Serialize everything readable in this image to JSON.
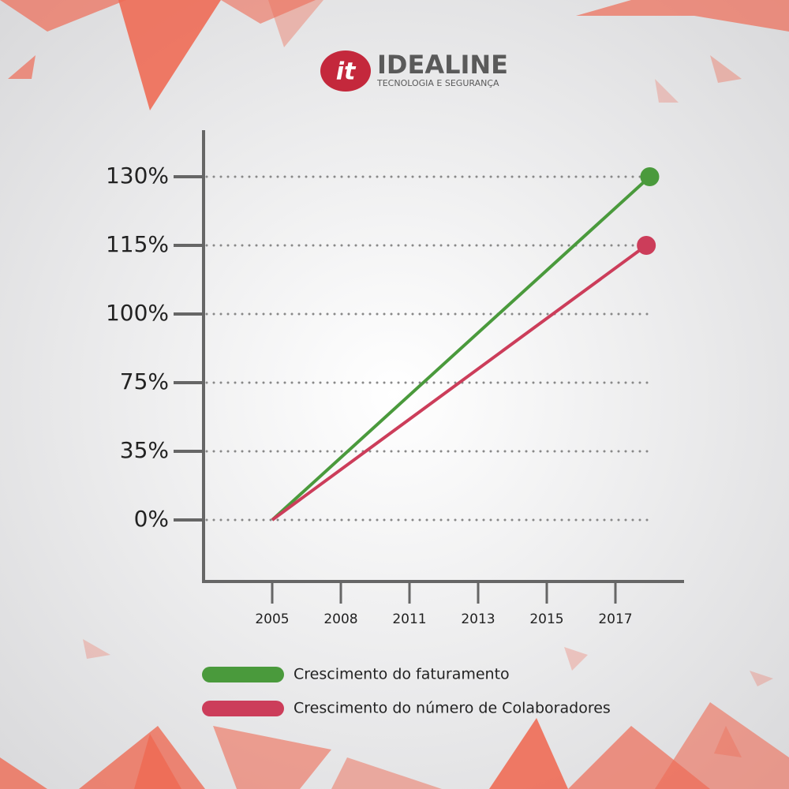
{
  "header": {
    "logo_mark": "it",
    "brand": "IDEALINE",
    "tagline": "TECNOLOGIA E SEGURANÇA"
  },
  "chart_data": {
    "type": "line",
    "xlim": [
      2002,
      2019
    ],
    "xticks": [
      2005,
      2008,
      2011,
      2013,
      2015,
      2017
    ],
    "ylim": [
      -31,
      140
    ],
    "yticks": [
      {
        "value": 0,
        "label": "0%"
      },
      {
        "value": 35,
        "label": "35%"
      },
      {
        "value": 75,
        "label": "75%"
      },
      {
        "value": 100,
        "label": "100%"
      },
      {
        "value": 115,
        "label": "115%"
      },
      {
        "value": 130,
        "label": "130%"
      }
    ],
    "grid": true,
    "series": [
      {
        "name": "Crescimento do faturamento",
        "color": "#4a9a3c",
        "x": [
          2005,
          2018
        ],
        "values": [
          0,
          130
        ]
      },
      {
        "name": "Crescimento do número de Colaboradores",
        "color": "#cc3d5a",
        "x": [
          2005,
          2017.9
        ],
        "values": [
          0,
          115
        ]
      }
    ]
  }
}
